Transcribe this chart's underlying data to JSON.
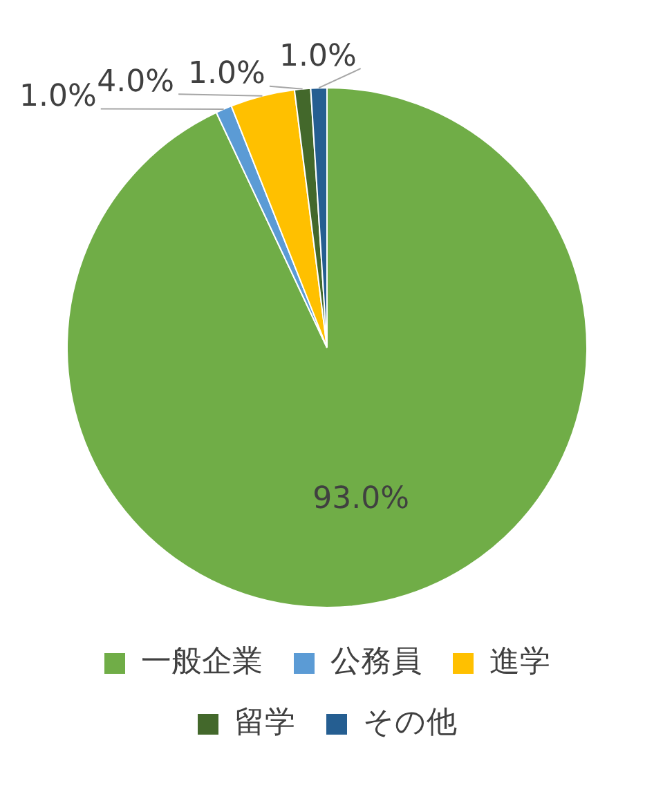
{
  "chart_data": {
    "type": "pie",
    "categories": [
      "一般企業",
      "公務員",
      "進学",
      "留学",
      "その他"
    ],
    "values": [
      93,
      1,
      4,
      1,
      1
    ],
    "colors": [
      "#70ad47",
      "#5b9bd5",
      "#ffc000",
      "#43682b",
      "#255e91"
    ],
    "value_labels": [
      "93.0%",
      "1.0%",
      "4.0%",
      "1.0%",
      "1.0%"
    ],
    "legend": "bottom"
  }
}
